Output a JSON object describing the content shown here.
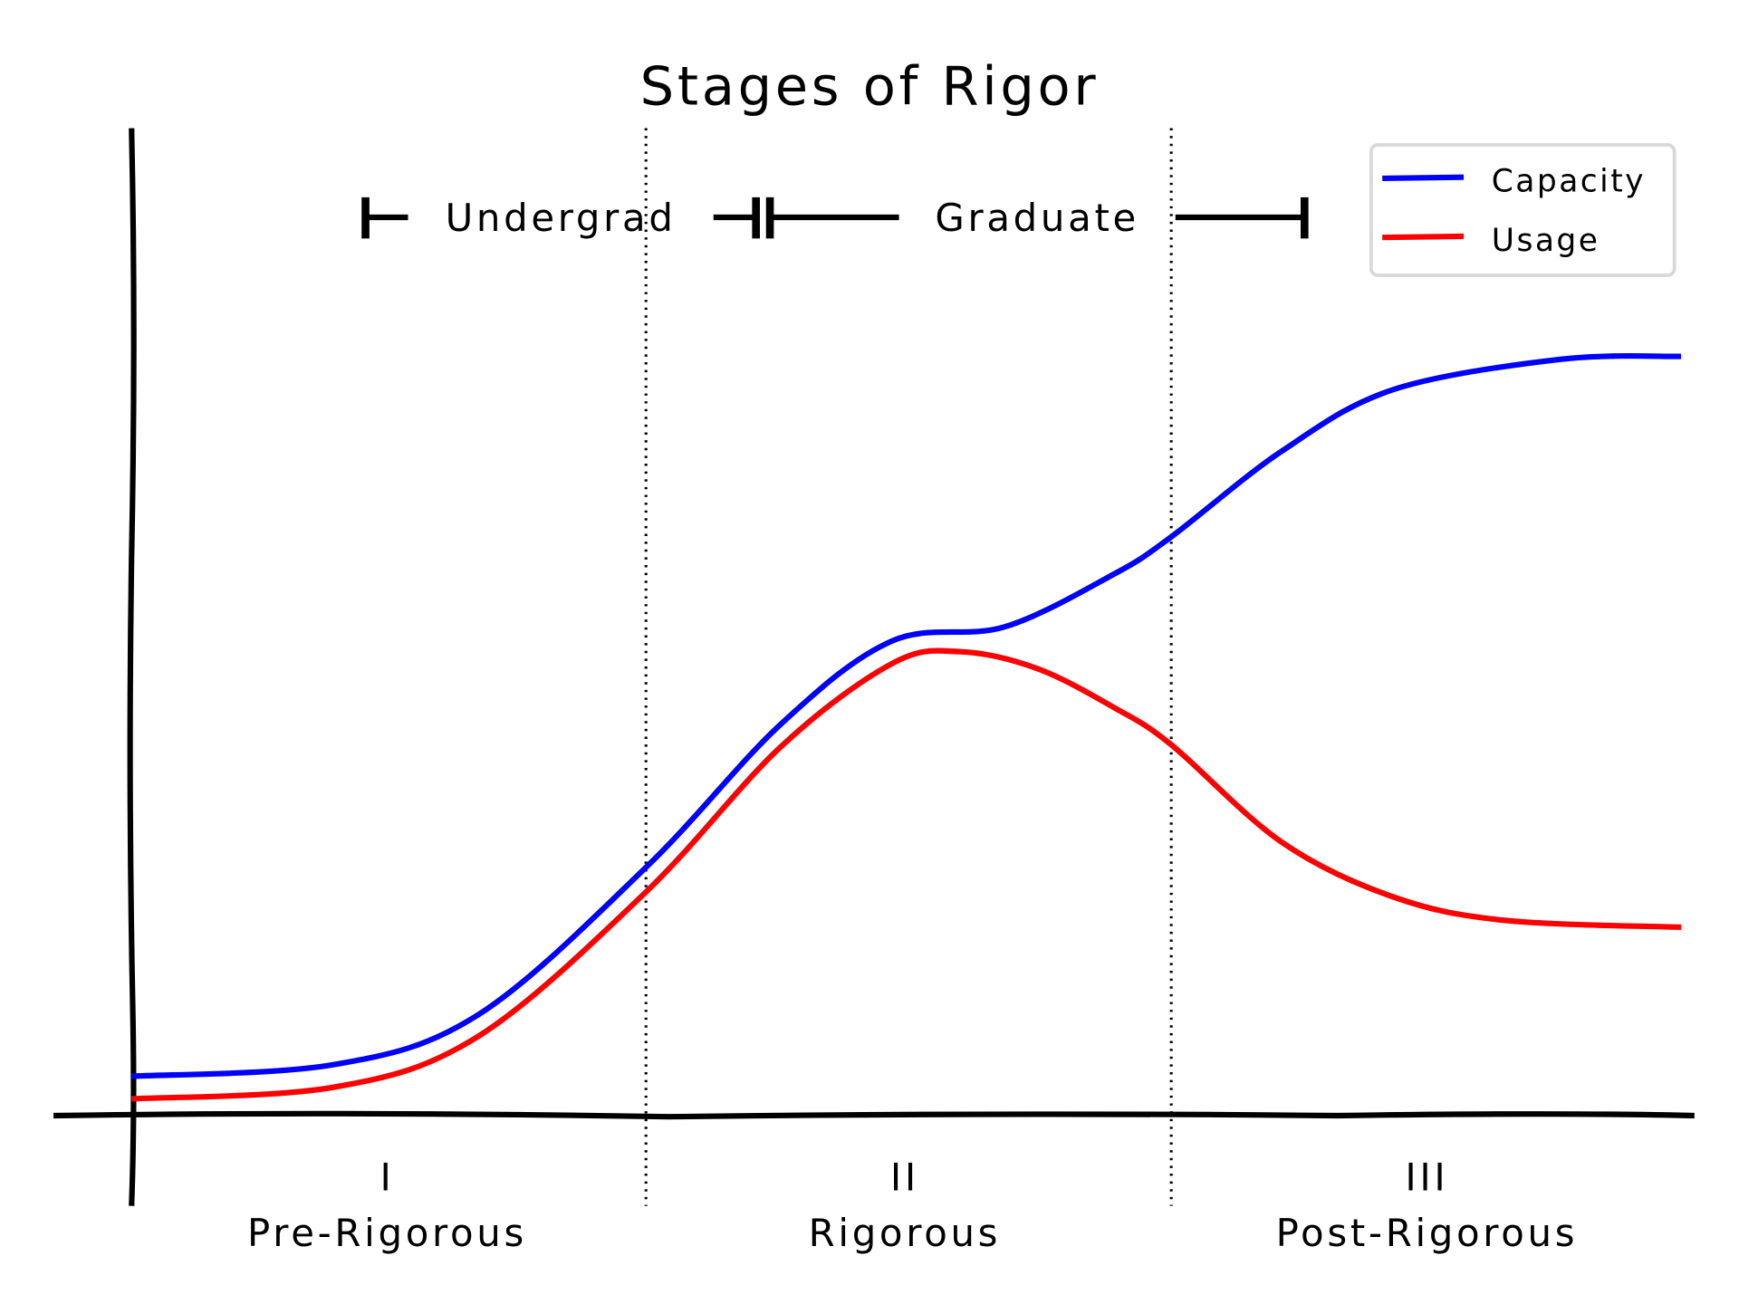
{
  "chart_data": {
    "type": "line",
    "title": "Stages of Rigor",
    "xlabel": "",
    "ylabel": "",
    "xlim": [
      0,
      10
    ],
    "ylim": [
      0,
      10
    ],
    "grid": false,
    "legend_position": "top-right",
    "series": [
      {
        "name": "Capacity",
        "color": "#0000ff",
        "x": [
          0,
          1.31,
          2.24,
          3.32,
          4.19,
          4.91,
          5.63,
          6.34,
          6.71,
          7.42,
          8.14,
          9.22,
          10
        ],
        "y": [
          0.39,
          0.51,
          1.02,
          2.52,
          3.98,
          4.83,
          4.97,
          5.51,
          5.89,
          6.76,
          7.39,
          7.7,
          7.73
        ]
      },
      {
        "name": "Usage",
        "color": "#ff0000",
        "x": [
          0,
          1.31,
          2.24,
          3.32,
          4.19,
          4.91,
          5.34,
          5.84,
          6.34,
          6.71,
          7.42,
          8.14,
          8.86,
          10
        ],
        "y": [
          0.16,
          0.28,
          0.8,
          2.27,
          3.75,
          4.6,
          4.72,
          4.55,
          4.15,
          3.77,
          2.78,
          2.22,
          1.98,
          1.91
        ]
      }
    ],
    "dividers": [
      3.32,
      6.71
    ],
    "stages": [
      {
        "numeral": "I",
        "label": "Pre-Rigorous",
        "x": 1.65
      },
      {
        "numeral": "II",
        "label": "Rigorous",
        "x": 4.99
      },
      {
        "numeral": "III",
        "label": "Post-Rigorous",
        "x": 8.36
      }
    ],
    "brackets": [
      {
        "label": "Undergrad",
        "from": 1.51,
        "to": 4.03
      },
      {
        "label": "Graduate",
        "from": 4.12,
        "to": 7.57
      }
    ]
  }
}
